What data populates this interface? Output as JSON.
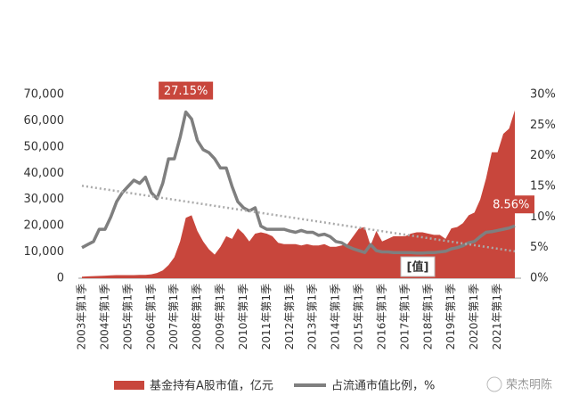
{
  "chart_data": {
    "type": "area_line",
    "categories": [
      "2003年第1季",
      null,
      null,
      null,
      "2004年第1季",
      null,
      null,
      null,
      "2005年第1季",
      null,
      null,
      null,
      "2006年第1季",
      null,
      null,
      null,
      "2007年第1季",
      null,
      null,
      null,
      "2008年第1季",
      null,
      null,
      null,
      "2009年第1季",
      null,
      null,
      null,
      "2010年第1季",
      null,
      null,
      null,
      "2011年第1季",
      null,
      null,
      null,
      "2012年第1季",
      null,
      null,
      null,
      "2013年第1季",
      null,
      null,
      null,
      "2014年第1季",
      null,
      null,
      null,
      "2015年第1季",
      null,
      null,
      null,
      "2016年第1季",
      null,
      null,
      null,
      "2017年第1季",
      null,
      null,
      null,
      "2018年第1季",
      null,
      null,
      null,
      "2019年第1季",
      null,
      null,
      null,
      "2020年第1季",
      null,
      null,
      null,
      "2021年第1季",
      null,
      null,
      null
    ],
    "series": [
      {
        "name": "基金持有A股市值，亿元",
        "color": "#c8463c",
        "kind": "area",
        "values": [
          600,
          700,
          800,
          900,
          1000,
          1100,
          1200,
          1200,
          1200,
          1200,
          1300,
          1300,
          1500,
          2000,
          3000,
          5000,
          8000,
          14000,
          23000,
          24000,
          18000,
          14000,
          11000,
          9000,
          12000,
          16000,
          15000,
          19000,
          17000,
          14000,
          17000,
          17500,
          17000,
          16000,
          13500,
          13000,
          13000,
          13000,
          12500,
          13000,
          12500,
          12500,
          13000,
          12000,
          12000,
          12500,
          13000,
          16000,
          19000,
          19500,
          12500,
          18000,
          14000,
          15000,
          16000,
          16000,
          16000,
          17000,
          17500,
          17500,
          17000,
          16500,
          16500,
          15000,
          19000,
          19500,
          21000,
          24000,
          25000,
          30000,
          38000,
          48000,
          48000,
          55000,
          57000,
          64000
        ]
      },
      {
        "name": "占流通市值比例，%",
        "color": "#7f7f7f",
        "kind": "line",
        "axis": "y2",
        "values": [
          5,
          5.5,
          6,
          8,
          8,
          10,
          12.5,
          14,
          15,
          16,
          15.5,
          16.5,
          14,
          13,
          15.5,
          19.5,
          19.5,
          23,
          27.15,
          26,
          22.5,
          21,
          20.5,
          19.5,
          18,
          18,
          15,
          12.5,
          11.5,
          11,
          11.5,
          8.5,
          8,
          8,
          8,
          8,
          7.7,
          7.5,
          7.8,
          7.5,
          7.5,
          7,
          7.2,
          6.8,
          6,
          5.8,
          5.2,
          4.8,
          4.5,
          4.2,
          5.5,
          4.5,
          4.3,
          4.3,
          4.2,
          4.2,
          4.2,
          4.2,
          4.1,
          4.1,
          4.2,
          4.2,
          4.3,
          4.4,
          4.8,
          5,
          5.3,
          5.8,
          6,
          6.8,
          7.5,
          7.6,
          7.8,
          8,
          8.2,
          8.56
        ],
        "value_labels": [
          null,
          null,
          null,
          null,
          null,
          null,
          null,
          null,
          null,
          null,
          null,
          null,
          null,
          null,
          null,
          null,
          null,
          null,
          "27.15%",
          null,
          null,
          null,
          null,
          null,
          null,
          null,
          null,
          null,
          null,
          null,
          null,
          null,
          null,
          null,
          null,
          null,
          null,
          null,
          null,
          null,
          null,
          null,
          null,
          null,
          null,
          null,
          null,
          null,
          null,
          null,
          null,
          null,
          null,
          null,
          null,
          null,
          null,
          null,
          null,
          null,
          null,
          null,
          null,
          null,
          null,
          null,
          null,
          null,
          null,
          null,
          null,
          null,
          null,
          null,
          null,
          "8.56%"
        ],
        "label_color": "#c8463c"
      }
    ],
    "trendline": {
      "axis": "y2",
      "color": "#aaaaaa",
      "values": [
        15.1,
        4.4
      ]
    },
    "annotations": [
      {
        "text": "[值]"
      }
    ],
    "ylim": [
      0,
      70000
    ],
    "yticks": [
      0,
      {
        "value": 10000,
        "label": "10,000"
      },
      {
        "value": 20000,
        "label": "20,000"
      },
      {
        "value": 30000,
        "label": "30,000"
      },
      {
        "value": 40000,
        "label": "40,000"
      },
      {
        "value": 50000,
        "label": "50,000"
      },
      {
        "value": 60000,
        "label": "60,000"
      },
      {
        "value": 70000,
        "label": "70,000"
      }
    ],
    "y2lim": [
      0,
      30
    ],
    "y2ticks": [
      {
        "value": 0,
        "label": "0%"
      },
      {
        "value": 5,
        "label": "5%"
      },
      {
        "value": 10,
        "label": "10%"
      },
      {
        "value": 15,
        "label": "15%"
      },
      {
        "value": 20,
        "label": "20%"
      },
      {
        "value": 25,
        "label": "25%"
      },
      {
        "value": 30,
        "label": "30%"
      }
    ],
    "watermark": "荣杰明陈"
  }
}
